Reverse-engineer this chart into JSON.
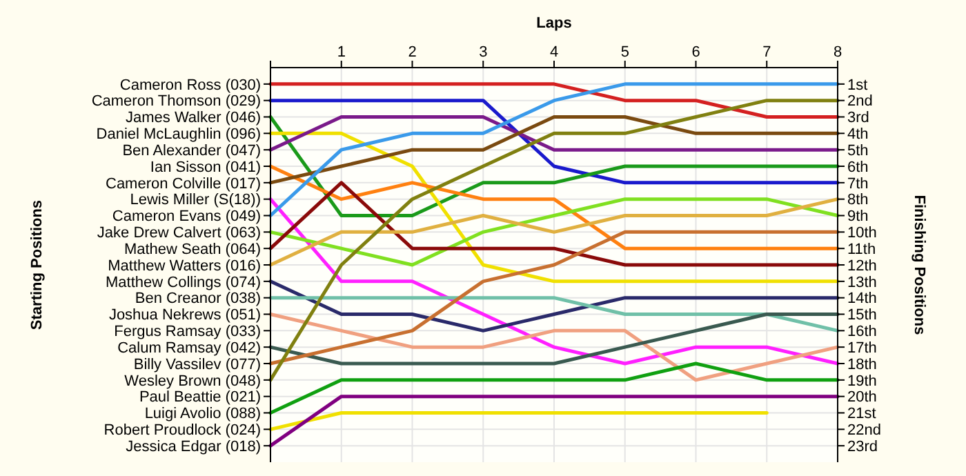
{
  "chart_data": {
    "type": "line",
    "xlabel": "Laps",
    "ylabel": "Finishing Positions",
    "xlim": [
      0,
      8
    ],
    "xticks": [
      {
        "value": 0,
        "label": null
      },
      1,
      2,
      3,
      4,
      5,
      6,
      7,
      8
    ],
    "annotations": [
      "Starting Positions",
      "Cameron Ross (030)",
      "Cameron Thomson (029)",
      "James Walker (046)",
      "Daniel McLaughlin (096)",
      "Ben Alexander (047)",
      "Ian Sisson (041)",
      "Cameron Colville (017)",
      "Lewis Miller (S(18))",
      "Cameron Evans (049)",
      "Jake Drew Calvert (063)",
      "Mathew Seath (064)",
      "Matthew Watters (016)",
      "Matthew Collings (074)",
      "Ben Creanor (038)",
      "Joshua Nekrews (051)",
      "Fergus Ramsay (033)",
      "Calum Ramsay (042)",
      "Billy Vassilev (077)",
      "Wesley Brown (048)",
      "Paul Beattie (021)",
      "Luigi Avolio (088)",
      "Robert Proudlock (024)",
      "Jessica Edgar (018)"
    ],
    "ylim": [
      24,
      0
    ],
    "yticks": [
      {
        "value": 1,
        "label": "1st"
      },
      {
        "value": 2,
        "label": "2nd"
      },
      {
        "value": 3,
        "label": "3rd"
      },
      {
        "value": 4,
        "label": "4th"
      },
      {
        "value": 5,
        "label": "5th"
      },
      {
        "value": 6,
        "label": "6th"
      },
      {
        "value": 7,
        "label": "7th"
      },
      {
        "value": 8,
        "label": "8th"
      },
      {
        "value": 9,
        "label": "9th"
      },
      {
        "value": 10,
        "label": "10th"
      },
      {
        "value": 11,
        "label": "11th"
      },
      {
        "value": 12,
        "label": "12th"
      },
      {
        "value": 13,
        "label": "13th"
      },
      {
        "value": 14,
        "label": "14th"
      },
      {
        "value": 15,
        "label": "15th"
      },
      {
        "value": 16,
        "label": "16th"
      },
      {
        "value": 17,
        "label": "17th"
      },
      {
        "value": 18,
        "label": "18th"
      },
      {
        "value": 19,
        "label": "19th"
      },
      {
        "value": 20,
        "label": "20th"
      },
      {
        "value": 21,
        "label": "21st"
      },
      {
        "value": 22,
        "label": "22nd"
      },
      {
        "value": 23,
        "label": "23rd"
      }
    ],
    "grid": true,
    "marker": "none",
    "line_style": "solid",
    "x": [
      0,
      1,
      2,
      3,
      4,
      5,
      6,
      7,
      8
    ],
    "series": [
      {
        "color": "#d42020",
        "values": [
          1,
          1,
          1,
          1,
          1,
          2,
          2,
          3,
          3
        ]
      },
      {
        "color": "#1a1acc",
        "values": [
          2,
          2,
          2,
          2,
          6,
          7,
          7,
          7,
          7
        ]
      },
      {
        "color": "#1a9a1a",
        "values": [
          3,
          9,
          9,
          7,
          7,
          6,
          6,
          6,
          6
        ]
      },
      {
        "color": "#f0e000",
        "values": [
          4,
          4,
          6,
          12,
          13,
          13,
          13,
          13,
          13
        ]
      },
      {
        "color": "#7a1a8a",
        "values": [
          5,
          3,
          3,
          3,
          5,
          5,
          5,
          5,
          5
        ]
      },
      {
        "color": "#ff8010",
        "values": [
          6,
          8,
          7,
          8,
          8,
          11,
          11,
          11,
          11
        ]
      },
      {
        "color": "#7a4a10",
        "values": [
          7,
          6,
          5,
          5,
          3,
          3,
          4,
          4,
          4
        ]
      },
      {
        "color": "#ff20ff",
        "values": [
          8,
          13,
          13,
          15,
          17,
          18,
          17,
          17,
          18
        ]
      },
      {
        "color": "#3a9aea",
        "values": [
          9,
          5,
          4,
          4,
          2,
          1,
          1,
          1,
          1
        ]
      },
      {
        "color": "#80e020",
        "values": [
          10,
          11,
          12,
          10,
          9,
          8,
          8,
          8,
          9
        ]
      },
      {
        "color": "#8a0a0a",
        "values": [
          11,
          7,
          11,
          11,
          11,
          12,
          12,
          12,
          12
        ]
      },
      {
        "color": "#e0b040",
        "values": [
          12,
          10,
          10,
          9,
          10,
          9,
          9,
          9,
          8
        ]
      },
      {
        "color": "#2a2a6a",
        "values": [
          13,
          15,
          15,
          16,
          15,
          14,
          14,
          14,
          14
        ]
      },
      {
        "color": "#70c0a8",
        "values": [
          14,
          14,
          14,
          14,
          14,
          15,
          15,
          15,
          16
        ]
      },
      {
        "color": "#f0a080",
        "values": [
          15,
          16,
          17,
          17,
          16,
          16,
          19,
          18,
          17
        ]
      },
      {
        "color": "#3a5a50",
        "values": [
          17,
          18,
          18,
          18,
          18,
          17,
          16,
          15,
          15
        ]
      },
      {
        "color": "#c87030",
        "values": [
          18,
          17,
          16,
          13,
          12,
          10,
          10,
          10,
          10
        ]
      },
      {
        "color": "#808010",
        "values": [
          19,
          12,
          8,
          6,
          4,
          4,
          3,
          2,
          2
        ]
      },
      {
        "color": "#10a010",
        "values": [
          21,
          19,
          19,
          19,
          19,
          19,
          18,
          19,
          19
        ]
      },
      {
        "color": "#f0e000",
        "values": [
          22,
          21,
          21,
          21,
          21,
          21,
          21,
          21,
          null
        ]
      },
      {
        "color": "#800080",
        "values": [
          23,
          20,
          20,
          20,
          20,
          20,
          20,
          20,
          20
        ]
      }
    ]
  }
}
